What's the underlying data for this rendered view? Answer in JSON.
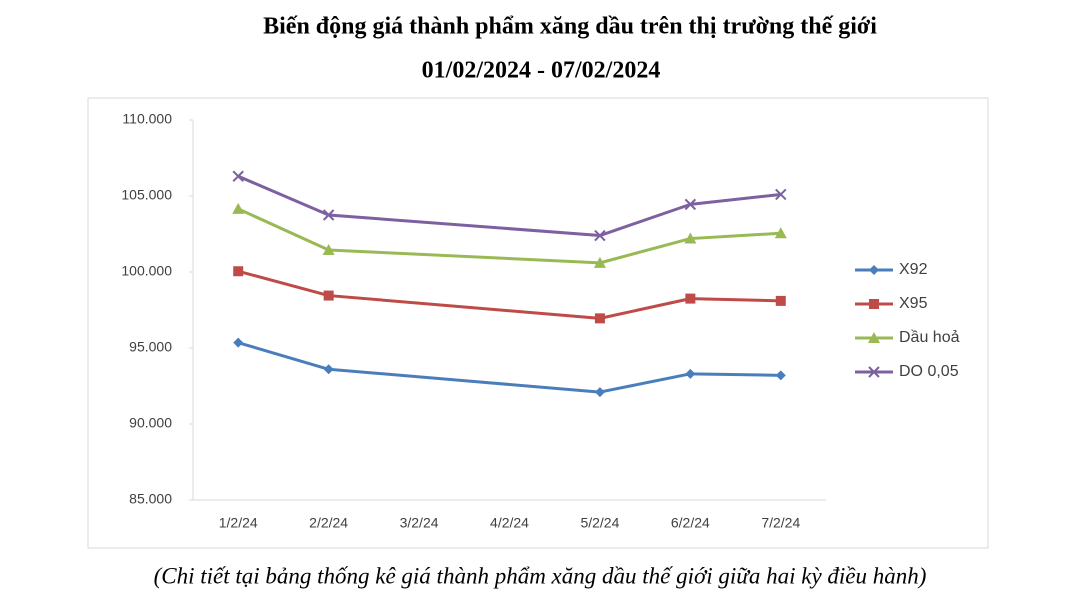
{
  "chart_data": {
    "type": "line",
    "title": "Biến động giá thành phẩm xăng dầu trên thị trường thế giới",
    "subtitle": "01/02/2024 - 07/02/2024",
    "note": "(Chi tiết tại bảng thống kê giá thành phẩm xăng dầu thế giới giữa hai kỳ điều hành)",
    "categories": [
      "1/2/24",
      "2/2/24",
      "3/2/24",
      "4/2/24",
      "5/2/24",
      "6/2/24",
      "7/2/24"
    ],
    "connect_gaps": true,
    "series": [
      {
        "name": "X92",
        "color": "#4a7ebb",
        "marker": "diamond",
        "values": [
          95350,
          93600,
          null,
          null,
          92100,
          93300,
          93200
        ]
      },
      {
        "name": "X95",
        "color": "#be4b48",
        "marker": "square",
        "values": [
          100050,
          98450,
          null,
          null,
          96950,
          98250,
          98100
        ]
      },
      {
        "name": "Dầu hoả",
        "color": "#98b954",
        "marker": "triangle",
        "values": [
          104150,
          101450,
          null,
          null,
          100600,
          102200,
          102550
        ]
      },
      {
        "name": "DO 0,05",
        "color": "#7d60a0",
        "marker": "x",
        "values": [
          106300,
          103750,
          null,
          null,
          102400,
          104450,
          105100
        ]
      }
    ],
    "ylim": [
      85000,
      110000
    ],
    "yticks": [
      {
        "value": 85000,
        "label": "85.000"
      },
      {
        "value": 90000,
        "label": "90.000"
      },
      {
        "value": 95000,
        "label": "95.000"
      },
      {
        "value": 100000,
        "label": "100.000"
      },
      {
        "value": 105000,
        "label": "105.000"
      },
      {
        "value": 110000,
        "label": "110.000"
      }
    ],
    "legend": "right"
  }
}
